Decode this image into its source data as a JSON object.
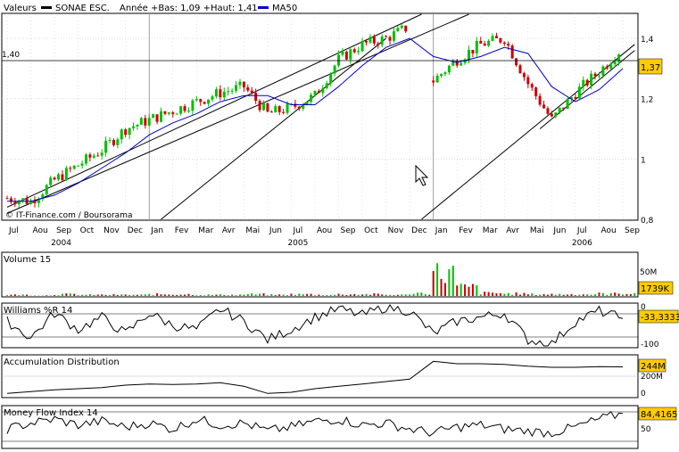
{
  "header": {
    "valeurs_label": "Valeurs",
    "instrument": "SONAE ESC.",
    "range_text": "Année +Bas: 1,09 +Haut: 1,41",
    "ma_label": "MA50"
  },
  "credit": "© IT-Finance.com / Boursorama",
  "colors": {
    "up": "#00c000",
    "down": "#cc0000",
    "ma": "#0000cc",
    "label_bg": "#ffcc00",
    "grid": "#bbbbbb",
    "cursor": "pointer-arrow-icon"
  },
  "x_axis": {
    "months": [
      "Jul",
      "Aou",
      "Sep",
      "Oct",
      "Nov",
      "Dec",
      "Jan",
      "Fev",
      "Mar",
      "Avr",
      "Mai",
      "Jun",
      "Jul",
      "Aou",
      "Sep",
      "Oct",
      "Nov",
      "Dec",
      "Jan",
      "Fev",
      "Mar",
      "Avr",
      "Mai",
      "Jun",
      "Jul",
      "Aou",
      "Sep"
    ],
    "years": [
      "2004",
      "2005",
      "2006"
    ]
  },
  "chart_data": [
    {
      "type": "line",
      "title": "SONAE ESC.",
      "subtitle": "Année +Bas: 1,09 +Haut: 1,41",
      "x": [
        "2004-07",
        "2004-08",
        "2004-09",
        "2004-10",
        "2004-11",
        "2004-12",
        "2005-01",
        "2005-02",
        "2005-03",
        "2005-04",
        "2005-05",
        "2005-06",
        "2005-07",
        "2005-08",
        "2005-09",
        "2005-10",
        "2005-11",
        "2005-12",
        "2006-01",
        "2006-02",
        "2006-03",
        "2006-04",
        "2006-05",
        "2006-06",
        "2006-07",
        "2006-08",
        "2006-09"
      ],
      "series": [
        {
          "name": "Valeurs",
          "values": [
            0.87,
            0.86,
            0.93,
            0.98,
            1.03,
            1.1,
            1.13,
            1.16,
            1.19,
            1.22,
            1.24,
            1.15,
            1.17,
            1.21,
            1.33,
            1.38,
            1.4,
            1.44,
            1.26,
            1.33,
            1.38,
            1.4,
            1.25,
            1.13,
            1.22,
            1.29,
            1.37
          ]
        },
        {
          "name": "MA50",
          "values": [
            0.86,
            0.86,
            0.88,
            0.92,
            0.97,
            1.02,
            1.08,
            1.12,
            1.15,
            1.19,
            1.21,
            1.21,
            1.18,
            1.18,
            1.24,
            1.31,
            1.37,
            1.4,
            1.34,
            1.32,
            1.34,
            1.37,
            1.35,
            1.24,
            1.19,
            1.23,
            1.3
          ]
        }
      ],
      "ylim": [
        0.8,
        1.48
      ],
      "yticks": [
        "0,8",
        "1",
        "1,2",
        "1,4"
      ],
      "yref_label": "1,40",
      "last_label": "1,37"
    },
    {
      "type": "bar",
      "title": "Volume 15",
      "values_m": [
        2,
        1,
        3,
        2,
        2,
        2,
        3,
        3,
        2,
        2,
        3,
        2,
        3,
        2,
        3,
        3,
        2,
        5,
        40,
        15,
        5,
        4,
        3,
        3,
        3,
        4,
        5
      ],
      "yticks": [
        "50M"
      ],
      "last_label": "1739K"
    },
    {
      "type": "line",
      "title": "Williams %R 14",
      "series": [
        {
          "name": "Williams %R 14",
          "values": [
            -40,
            -80,
            -20,
            -60,
            -30,
            -70,
            -20,
            -50,
            -60,
            -10,
            -40,
            -85,
            -60,
            -30,
            -10,
            -25,
            -5,
            -15,
            -70,
            -40,
            -30,
            -20,
            -85,
            -95,
            -40,
            -15,
            -33.33
          ]
        }
      ],
      "yticks": [
        "0",
        "-100"
      ],
      "last_label": "-33,3333"
    },
    {
      "type": "line",
      "title": "Accumulation Distribution",
      "series": [
        {
          "name": "Accumulation Distribution",
          "values": [
            20,
            35,
            50,
            60,
            70,
            90,
            100,
            95,
            100,
            110,
            80,
            20,
            30,
            60,
            80,
            100,
            120,
            140,
            290,
            270,
            270,
            265,
            250,
            240,
            240,
            245,
            244
          ]
        }
      ],
      "yticks": [
        "200M",
        "0"
      ],
      "last_label": "244M"
    },
    {
      "type": "line",
      "title": "Money Flow Index 14",
      "series": [
        {
          "name": "Money Flow Index 14",
          "values": [
            45,
            60,
            70,
            55,
            65,
            50,
            60,
            45,
            70,
            55,
            60,
            40,
            50,
            65,
            70,
            55,
            60,
            45,
            35,
            50,
            55,
            45,
            40,
            35,
            50,
            70,
            84.42
          ]
        }
      ],
      "yticks": [
        "50"
      ],
      "last_label": "84,4165"
    }
  ]
}
